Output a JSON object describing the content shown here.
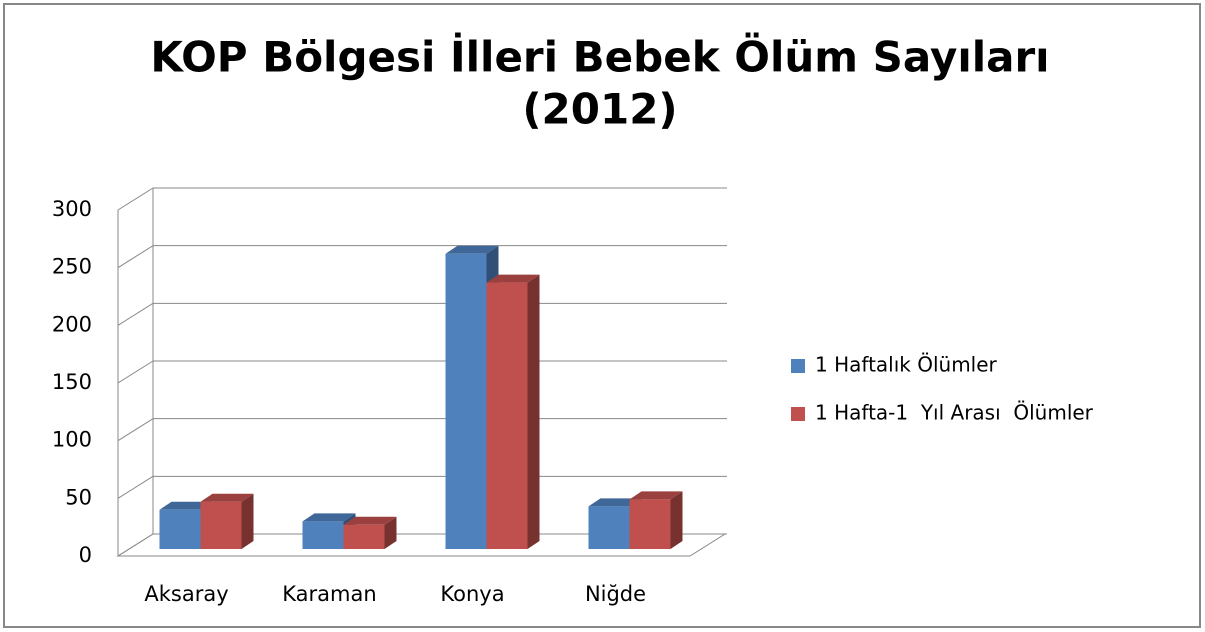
{
  "chart_data": {
    "type": "bar3d",
    "title": [
      "KOP Bölgesi İlleri Bebek Ölüm Sayıları",
      "(2012)"
    ],
    "categories": [
      "Aksaray",
      "Karaman",
      "Konya",
      "Niğde"
    ],
    "series": [
      {
        "name": "1 Haftalık Ölümler",
        "color": "#4f81bd",
        "values": [
          34,
          24,
          256,
          37
        ]
      },
      {
        "name": "1 Hafta-1  Yıl Arası  Ölümler",
        "color": "#c0504d",
        "values": [
          41,
          21,
          231,
          43
        ]
      }
    ],
    "ylim": [
      0,
      300
    ],
    "yticks": [
      0,
      50,
      100,
      150,
      200,
      250,
      300
    ],
    "grid": true,
    "legend": "right"
  }
}
